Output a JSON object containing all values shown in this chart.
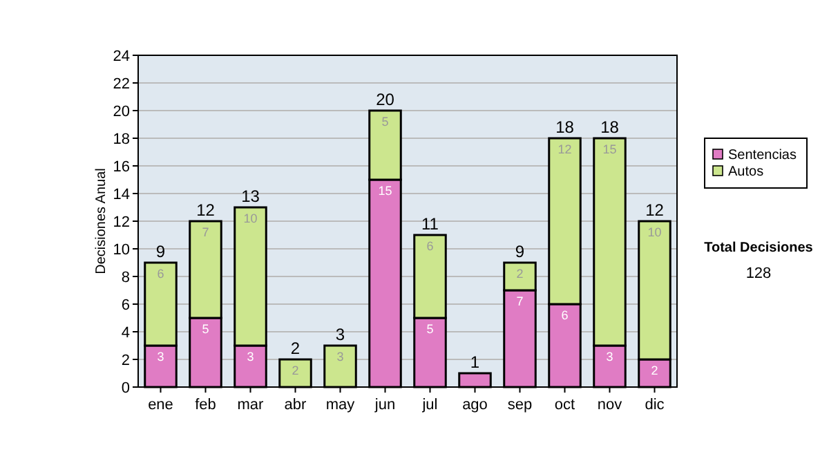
{
  "chart_data": {
    "type": "bar",
    "stacked": true,
    "ylabel": "Decisiones Anual",
    "categories": [
      "ene",
      "feb",
      "mar",
      "abr",
      "may",
      "jun",
      "jul",
      "ago",
      "sep",
      "oct",
      "nov",
      "dic"
    ],
    "series": [
      {
        "name": "Sentencias",
        "color": "#e07cc4",
        "values": [
          3,
          5,
          3,
          0,
          0,
          15,
          5,
          1,
          7,
          6,
          3,
          2
        ],
        "value_labels": [
          "3",
          "5",
          "3",
          null,
          null,
          "15",
          "5",
          null,
          "7",
          "6",
          "3",
          "2"
        ]
      },
      {
        "name": "Autos",
        "color": "#cce68e",
        "values": [
          6,
          7,
          10,
          2,
          3,
          5,
          6,
          0,
          2,
          12,
          15,
          10
        ],
        "value_labels": [
          "6",
          "7",
          "10",
          "2",
          "3",
          "5",
          "6",
          null,
          "2",
          "12",
          "15",
          "10"
        ]
      }
    ],
    "totals": [
      "9",
      "12",
      "13",
      "2",
      "3",
      "20",
      "11",
      "1",
      "9",
      "18",
      "18",
      "12"
    ],
    "ylim": [
      0,
      24
    ],
    "yticks": [
      0,
      2,
      4,
      6,
      8,
      10,
      12,
      14,
      16,
      18,
      20,
      22,
      24
    ],
    "grid": "y",
    "legend": "right",
    "annotations": [
      "Total Decisiones",
      "128"
    ]
  }
}
